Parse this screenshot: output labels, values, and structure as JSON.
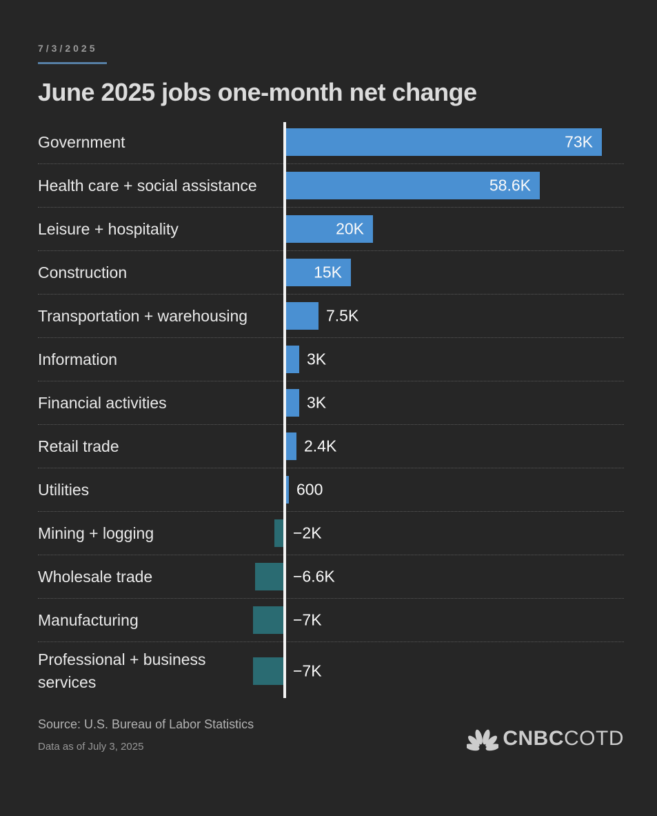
{
  "header": {
    "date": "7/3/2025",
    "title": "June 2025 jobs one-month net change"
  },
  "chart_data": {
    "type": "bar",
    "orientation": "horizontal",
    "title": "June 2025 jobs one-month net change",
    "unit": "jobs (K = thousands)",
    "xlim": [
      -10,
      78
    ],
    "zero_axis_line": true,
    "grid": false,
    "legend": "none",
    "positive_color": "#4a90d2",
    "negative_color": "#2a6b72",
    "items": [
      {
        "label": "Government",
        "value": 73,
        "display": "73K",
        "inside": true
      },
      {
        "label": "Health care + social assistance",
        "value": 58.6,
        "display": "58.6K",
        "inside": true
      },
      {
        "label": "Leisure + hospitality",
        "value": 20,
        "display": "20K",
        "inside": true
      },
      {
        "label": "Construction",
        "value": 15,
        "display": "15K",
        "inside": true
      },
      {
        "label": "Transportation + warehousing",
        "value": 7.5,
        "display": "7.5K",
        "inside": false
      },
      {
        "label": "Information",
        "value": 3,
        "display": "3K",
        "inside": false
      },
      {
        "label": "Financial activities",
        "value": 3,
        "display": "3K",
        "inside": false
      },
      {
        "label": "Retail trade",
        "value": 2.4,
        "display": "2.4K",
        "inside": false
      },
      {
        "label": "Utilities",
        "value": 0.6,
        "display": "600",
        "inside": false
      },
      {
        "label": "Mining + logging",
        "value": -2,
        "display": "−2K",
        "inside": false
      },
      {
        "label": "Wholesale trade",
        "value": -6.6,
        "display": "−6.6K",
        "inside": false
      },
      {
        "label": "Manufacturing",
        "value": -7,
        "display": "−7K",
        "inside": false
      },
      {
        "label": "Professional + business services",
        "value": -7,
        "display": "−7K",
        "inside": false
      }
    ]
  },
  "footer": {
    "source": "Source: U.S. Bureau of Labor Statistics",
    "as_of": "Data as of July 3, 2025",
    "logo": {
      "brand": "CNBC",
      "product": "COTD",
      "icon": "nbc-peacock-icon",
      "color": "#cdcdcd"
    }
  },
  "colors": {
    "background": "#262626",
    "title_text": "#dcdcdc",
    "date_text": "#9a9a9a",
    "date_underline": "#567fa5",
    "category_text": "#e9e9e9",
    "value_text": "#fafafa",
    "axis_line": "#f4f4f4",
    "separator": "#5a5a5a",
    "positive_bar": "#4a90d2",
    "negative_bar": "#2a6b72"
  }
}
